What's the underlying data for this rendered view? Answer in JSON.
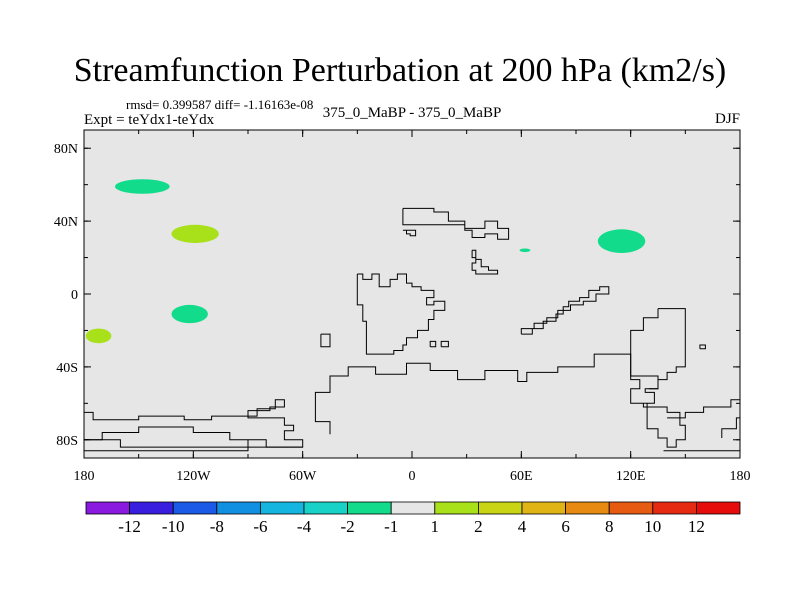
{
  "chart_data": {
    "type": "map-contour",
    "title": "Streamfunction Perturbation at 200 hPa (km2/s)",
    "stats_text": "rmsd= 0.399587 diff= -1.16163e-08",
    "left_label": "Expt = teYdx1-teYdx",
    "center_label": "375_0_MaBP - 375_0_MaBP",
    "right_label": "DJF",
    "x_ticks": [
      "180",
      "120W",
      "60W",
      "0",
      "60E",
      "120E",
      "180"
    ],
    "y_ticks": [
      "80N",
      "40N",
      "0",
      "40S",
      "80S"
    ],
    "xlim": [
      -180,
      180
    ],
    "ylim": [
      -90,
      90
    ],
    "colorbar": {
      "labels": [
        "-12",
        "-10",
        "-8",
        "-6",
        "-4",
        "-2",
        "-1",
        "1",
        "2",
        "4",
        "6",
        "8",
        "10",
        "12"
      ],
      "colors": [
        "#8a1ae0",
        "#3a1ee0",
        "#1a5ae6",
        "#118fe0",
        "#14b6e0",
        "#18d2c8",
        "#12dc8c",
        "#e6e6e6",
        "#a8e01a",
        "#c8d414",
        "#e0b414",
        "#e68a12",
        "#e65a12",
        "#e62a12",
        "#e60c0c"
      ]
    },
    "anomalies": [
      {
        "lon": -148,
        "lat": 59,
        "rlon": 15,
        "rlat": 4,
        "value": -1,
        "color": "#12dc8c"
      },
      {
        "lon": -119,
        "lat": 33,
        "rlon": 13,
        "rlat": 5,
        "value": 1,
        "color": "#a8e01a"
      },
      {
        "lon": -122,
        "lat": -11,
        "rlon": 10,
        "rlat": 5,
        "value": -1,
        "color": "#12dc8c"
      },
      {
        "lon": -172,
        "lat": -23,
        "rlon": 7,
        "rlat": 4,
        "value": 1,
        "color": "#a8e01a"
      },
      {
        "lon": 115,
        "lat": 29,
        "rlon": 13,
        "rlat": 6.5,
        "value": -1,
        "color": "#12dc8c"
      },
      {
        "lon": 62,
        "lat": 24,
        "rlon": 3,
        "rlat": 1,
        "value": -1,
        "color": "#12dc8c"
      }
    ],
    "coastlines": [
      [
        [
          -5,
          47
        ],
        [
          12,
          47
        ],
        [
          12,
          45
        ],
        [
          20,
          45
        ],
        [
          20,
          40
        ],
        [
          29,
          40
        ],
        [
          29,
          36
        ],
        [
          40,
          36
        ],
        [
          40,
          40
        ],
        [
          47,
          40
        ],
        [
          47,
          36
        ],
        [
          53,
          36
        ],
        [
          53,
          30
        ],
        [
          47,
          30
        ],
        [
          47,
          33
        ],
        [
          40,
          33
        ],
        [
          40,
          31
        ],
        [
          33,
          31
        ],
        [
          33,
          35
        ],
        [
          29,
          35
        ],
        [
          29,
          38
        ],
        [
          -5,
          38
        ],
        [
          -5,
          47
        ]
      ],
      [
        [
          -5,
          35
        ],
        [
          -3,
          35
        ],
        [
          -3,
          33
        ],
        [
          -1,
          33
        ],
        [
          -1,
          32
        ],
        [
          2,
          32
        ],
        [
          2,
          35
        ],
        [
          -5,
          35
        ]
      ],
      [
        [
          33,
          24
        ],
        [
          35,
          24
        ],
        [
          35,
          19
        ],
        [
          38,
          19
        ],
        [
          38,
          15
        ],
        [
          42,
          15
        ],
        [
          42,
          13
        ],
        [
          47,
          13
        ],
        [
          47,
          11
        ],
        [
          35,
          11
        ],
        [
          35,
          13
        ],
        [
          33,
          13
        ],
        [
          33,
          17
        ],
        [
          35,
          17
        ],
        [
          35,
          20
        ],
        [
          33,
          20
        ],
        [
          33,
          24
        ]
      ],
      [
        [
          -30,
          11
        ],
        [
          -27,
          11
        ],
        [
          -27,
          8
        ],
        [
          -22,
          8
        ],
        [
          -22,
          11
        ],
        [
          -18,
          11
        ],
        [
          -18,
          4
        ],
        [
          -12,
          4
        ],
        [
          -12,
          8
        ],
        [
          -8,
          8
        ],
        [
          -8,
          11
        ],
        [
          -3,
          11
        ],
        [
          -3,
          6
        ],
        [
          0,
          6
        ],
        [
          0,
          4
        ],
        [
          5,
          4
        ],
        [
          5,
          2
        ],
        [
          12,
          2
        ],
        [
          12,
          -2
        ],
        [
          8,
          -2
        ],
        [
          8,
          -6
        ],
        [
          12,
          -6
        ],
        [
          12,
          -4
        ],
        [
          18,
          -4
        ],
        [
          18,
          -9
        ],
        [
          12,
          -9
        ],
        [
          12,
          -14
        ],
        [
          9,
          -14
        ],
        [
          9,
          -20
        ],
        [
          3,
          -20
        ],
        [
          3,
          -24
        ],
        [
          -3,
          -24
        ],
        [
          -3,
          -28
        ],
        [
          -5,
          -28
        ],
        [
          -5,
          -31
        ],
        [
          -10,
          -31
        ],
        [
          -10,
          -33
        ],
        [
          -25,
          -33
        ],
        [
          -25,
          -15
        ],
        [
          -27,
          -15
        ],
        [
          -27,
          -6
        ],
        [
          -30,
          -6
        ],
        [
          -30,
          11
        ]
      ],
      [
        [
          -50,
          -22
        ],
        [
          -45,
          -22
        ],
        [
          -45,
          -29
        ],
        [
          -50,
          -29
        ],
        [
          -50,
          -22
        ]
      ],
      [
        [
          10,
          -29
        ],
        [
          13,
          -29
        ],
        [
          13,
          -26
        ],
        [
          10,
          -26
        ],
        [
          10,
          -29
        ]
      ],
      [
        [
          16,
          -29
        ],
        [
          20,
          -29
        ],
        [
          20,
          -26
        ],
        [
          16,
          -26
        ],
        [
          16,
          -29
        ]
      ],
      [
        [
          60,
          -22
        ],
        [
          66,
          -22
        ],
        [
          66,
          -19
        ],
        [
          72,
          -19
        ],
        [
          72,
          -15
        ],
        [
          79,
          -15
        ],
        [
          79,
          -11
        ],
        [
          83,
          -11
        ],
        [
          83,
          -7
        ],
        [
          86,
          -7
        ],
        [
          86,
          -4
        ],
        [
          92,
          -4
        ],
        [
          92,
          -2
        ],
        [
          97,
          -2
        ],
        [
          97,
          2
        ],
        [
          103,
          2
        ],
        [
          103,
          4
        ],
        [
          108,
          4
        ],
        [
          108,
          0
        ],
        [
          101,
          0
        ],
        [
          101,
          -4
        ],
        [
          94,
          -4
        ],
        [
          94,
          -6
        ],
        [
          87,
          -6
        ],
        [
          87,
          -9
        ],
        [
          80,
          -9
        ],
        [
          80,
          -13
        ],
        [
          74,
          -13
        ],
        [
          74,
          -16
        ],
        [
          67,
          -16
        ],
        [
          67,
          -19
        ],
        [
          60,
          -19
        ],
        [
          60,
          -22
        ]
      ],
      [
        [
          135,
          -8
        ],
        [
          150,
          -8
        ],
        [
          150,
          -40
        ],
        [
          145,
          -40
        ],
        [
          145,
          -43
        ],
        [
          140,
          -43
        ],
        [
          140,
          -47
        ],
        [
          135,
          -47
        ],
        [
          135,
          -52
        ],
        [
          128,
          -52
        ],
        [
          128,
          -54
        ],
        [
          133,
          -54
        ],
        [
          133,
          -60
        ],
        [
          127,
          -60
        ],
        [
          127,
          -62
        ],
        [
          140,
          -62
        ],
        [
          140,
          -65
        ],
        [
          147,
          -65
        ],
        [
          147,
          -72
        ],
        [
          150,
          -72
        ],
        [
          150,
          -80
        ],
        [
          145,
          -80
        ],
        [
          145,
          -84
        ],
        [
          140,
          -84
        ],
        [
          140,
          -79
        ],
        [
          135,
          -79
        ],
        [
          135,
          -74
        ],
        [
          129,
          -74
        ],
        [
          129,
          -60
        ],
        [
          120,
          -60
        ],
        [
          120,
          -52
        ],
        [
          125,
          -52
        ],
        [
          125,
          -47
        ],
        [
          120,
          -47
        ],
        [
          120,
          -20
        ],
        [
          127,
          -20
        ],
        [
          127,
          -13
        ],
        [
          135,
          -13
        ],
        [
          135,
          -8
        ]
      ],
      [
        [
          158,
          -30
        ],
        [
          161,
          -30
        ],
        [
          161,
          -28
        ],
        [
          158,
          -28
        ],
        [
          158,
          -30
        ]
      ],
      [
        [
          -180,
          -65
        ],
        [
          -175,
          -65
        ],
        [
          -175,
          -69
        ],
        [
          -150,
          -69
        ],
        [
          -150,
          -67
        ],
        [
          -125,
          -67
        ],
        [
          -125,
          -69
        ],
        [
          -110,
          -69
        ],
        [
          -110,
          -67
        ],
        [
          -85,
          -67
        ],
        [
          -85,
          -63
        ],
        [
          -75,
          -63
        ],
        [
          -75,
          -58
        ],
        [
          -70,
          -58
        ],
        [
          -70,
          -62
        ],
        [
          -78,
          -62
        ],
        [
          -78,
          -64
        ],
        [
          -90,
          -64
        ],
        [
          -90,
          -68
        ],
        [
          -70,
          -68
        ],
        [
          -70,
          -72
        ],
        [
          -65,
          -72
        ],
        [
          -65,
          -75
        ],
        [
          -70,
          -75
        ],
        [
          -70,
          -80
        ],
        [
          -60,
          -80
        ],
        [
          -60,
          -84
        ],
        [
          -80,
          -84
        ],
        [
          -80,
          -80
        ],
        [
          -100,
          -80
        ],
        [
          -100,
          -76
        ],
        [
          -120,
          -76
        ],
        [
          -120,
          -73
        ],
        [
          -150,
          -73
        ],
        [
          -150,
          -76
        ],
        [
          -170,
          -76
        ],
        [
          -170,
          -80
        ],
        [
          -180,
          -80
        ]
      ],
      [
        [
          -45,
          -77
        ],
        [
          -45,
          -70
        ],
        [
          -53,
          -70
        ],
        [
          -53,
          -54
        ],
        [
          -45,
          -54
        ],
        [
          -45,
          -45
        ],
        [
          -35,
          -45
        ],
        [
          -35,
          -40
        ],
        [
          -20,
          -40
        ],
        [
          -20,
          -44
        ],
        [
          -3,
          -44
        ],
        [
          -3,
          -38
        ],
        [
          10,
          -38
        ],
        [
          10,
          -42
        ],
        [
          25,
          -42
        ],
        [
          25,
          -47
        ],
        [
          40,
          -47
        ],
        [
          40,
          -42
        ],
        [
          58,
          -42
        ],
        [
          58,
          -48
        ],
        [
          63,
          -48
        ],
        [
          63,
          -43
        ],
        [
          80,
          -43
        ],
        [
          80,
          -40
        ],
        [
          100,
          -40
        ],
        [
          100,
          -33
        ],
        [
          120,
          -33
        ],
        [
          120,
          -45
        ],
        [
          135,
          -45
        ],
        [
          135,
          -52
        ],
        [
          130,
          -52
        ]
      ],
      [
        [
          -180,
          -80
        ],
        [
          -160,
          -80
        ],
        [
          -160,
          -84
        ],
        [
          -60,
          -84
        ]
      ],
      [
        [
          170,
          -79
        ],
        [
          170,
          -74
        ],
        [
          178,
          -74
        ],
        [
          178,
          -68
        ],
        [
          180,
          -68
        ]
      ],
      [
        [
          -180,
          -86
        ],
        [
          -90,
          -86
        ],
        [
          -90,
          -80
        ]
      ],
      [
        [
          138,
          -86
        ],
        [
          180,
          -86
        ]
      ],
      [
        [
          140,
          -68
        ],
        [
          150,
          -68
        ],
        [
          150,
          -65
        ],
        [
          160,
          -65
        ],
        [
          160,
          -62
        ],
        [
          175,
          -62
        ],
        [
          175,
          -58
        ],
        [
          180,
          -58
        ]
      ]
    ]
  }
}
